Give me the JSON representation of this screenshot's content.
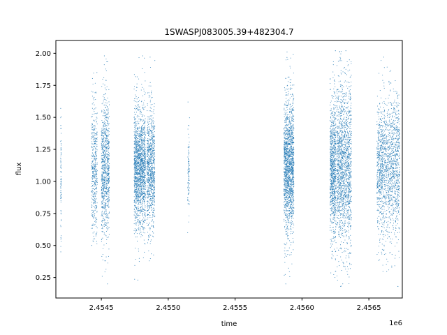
{
  "chart_data": {
    "type": "scatter",
    "title": "1SWASPJ083005.39+482304.7",
    "xlabel": "time",
    "ylabel": "flux",
    "x_offset_label": "1e6",
    "xlim": [
      2454160,
      2456750
    ],
    "ylim": [
      0.09,
      2.1
    ],
    "x_ticks": [
      2454500,
      2455000,
      2455500,
      2456000,
      2456500
    ],
    "x_tick_labels": [
      "2.4545",
      "2.4550",
      "2.4555",
      "2.4560",
      "2.4565"
    ],
    "y_ticks": [
      0.25,
      0.5,
      0.75,
      1.0,
      1.25,
      1.5,
      1.75,
      2.0
    ],
    "y_tick_labels": [
      "0.25",
      "0.50",
      "0.75",
      "1.00",
      "1.25",
      "1.50",
      "1.75",
      "2.00"
    ],
    "grid": false,
    "legend": "none",
    "point_color": "#1f77b4",
    "clusters": [
      {
        "x_range": [
          2454195,
          2454200
        ],
        "y_core": [
          0.75,
          1.4
        ],
        "y_extent": [
          0.45,
          1.57
        ],
        "density": "sparse"
      },
      {
        "x_range": [
          2454425,
          2454470
        ],
        "y_core": [
          0.75,
          1.45
        ],
        "y_extent": [
          0.5,
          1.85
        ],
        "density": "medium"
      },
      {
        "x_range": [
          2454500,
          2454560
        ],
        "y_core": [
          0.75,
          1.45
        ],
        "y_extent": [
          0.2,
          1.98
        ],
        "density": "dense"
      },
      {
        "x_range": [
          2454745,
          2454830
        ],
        "y_core": [
          0.8,
          1.4
        ],
        "y_extent": [
          0.23,
          1.98
        ],
        "density": "very-dense"
      },
      {
        "x_range": [
          2454840,
          2454900
        ],
        "y_core": [
          0.8,
          1.4
        ],
        "y_extent": [
          0.38,
          1.97
        ],
        "density": "dense"
      },
      {
        "x_range": [
          2455145,
          2455160
        ],
        "y_core": [
          0.85,
          1.3
        ],
        "y_extent": [
          0.6,
          1.62
        ],
        "density": "sparse"
      },
      {
        "x_range": [
          2455865,
          2455940
        ],
        "y_core": [
          0.8,
          1.45
        ],
        "y_extent": [
          0.2,
          2.01
        ],
        "density": "very-dense"
      },
      {
        "x_range": [
          2456210,
          2456255
        ],
        "y_core": [
          0.75,
          1.45
        ],
        "y_extent": [
          0.25,
          2.02
        ],
        "density": "dense"
      },
      {
        "x_range": [
          2456260,
          2456370
        ],
        "y_core": [
          0.7,
          1.55
        ],
        "y_extent": [
          0.18,
          2.02
        ],
        "density": "very-dense"
      },
      {
        "x_range": [
          2456560,
          2456730
        ],
        "y_core": [
          0.75,
          1.45
        ],
        "y_extent": [
          0.18,
          1.97
        ],
        "density": "very-dense"
      }
    ]
  }
}
